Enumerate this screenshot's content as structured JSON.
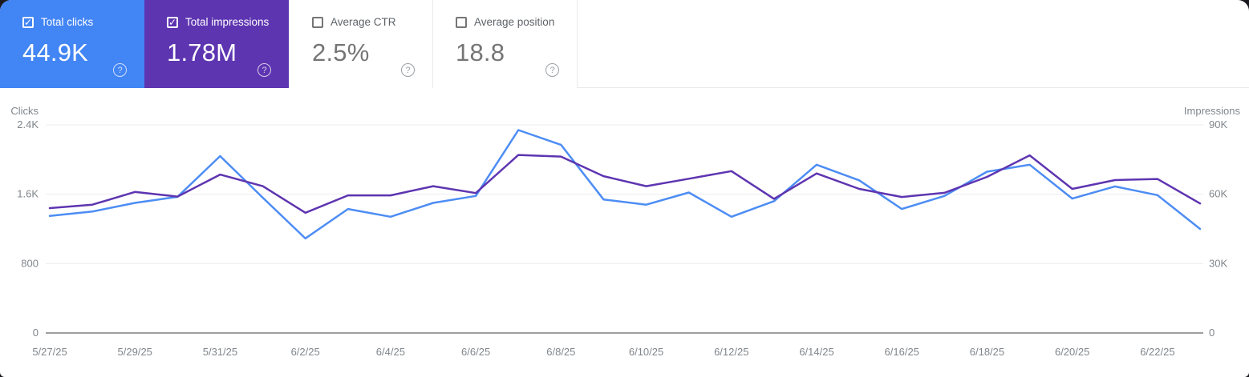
{
  "cards": [
    {
      "label": "Total clicks",
      "value": "44.9K",
      "selected": true,
      "color": "#4285f4",
      "help": "?"
    },
    {
      "label": "Total impressions",
      "value": "1.78M",
      "selected": true,
      "color": "#5e35b1",
      "help": "?"
    },
    {
      "label": "Average CTR",
      "value": "2.5%",
      "selected": false,
      "color": "",
      "help": "?"
    },
    {
      "label": "Average position",
      "value": "18.8",
      "selected": false,
      "color": "",
      "help": "?"
    }
  ],
  "chart_data": {
    "type": "line",
    "x": [
      "5/27/25",
      "5/28/25",
      "5/29/25",
      "5/30/25",
      "5/31/25",
      "6/1/25",
      "6/2/25",
      "6/3/25",
      "6/4/25",
      "6/5/25",
      "6/6/25",
      "6/7/25",
      "6/8/25",
      "6/9/25",
      "6/10/25",
      "6/11/25",
      "6/12/25",
      "6/13/25",
      "6/14/25",
      "6/15/25",
      "6/16/25",
      "6/17/25",
      "6/18/25",
      "6/19/25",
      "6/20/25",
      "6/21/25",
      "6/22/25",
      "6/23/25"
    ],
    "x_tick_every": 2,
    "series": [
      {
        "name": "Clicks",
        "axis": "left",
        "color": "#4d8df4",
        "values": [
          1350,
          1400,
          1500,
          1570,
          2040,
          1560,
          1090,
          1430,
          1340,
          1500,
          1580,
          2340,
          2170,
          1540,
          1480,
          1620,
          1340,
          1520,
          1940,
          1760,
          1430,
          1580,
          1860,
          1940,
          1550,
          1690,
          1590,
          1200
        ]
      },
      {
        "name": "Impressions",
        "axis": "right",
        "color": "#5e35b1",
        "values": [
          54000,
          55500,
          61000,
          59000,
          68500,
          63500,
          52000,
          59500,
          59500,
          63500,
          60500,
          77000,
          76300,
          67800,
          63500,
          66700,
          70000,
          58000,
          69000,
          62300,
          58800,
          60600,
          67500,
          76800,
          62300,
          66100,
          66600,
          56000
        ]
      }
    ],
    "left_axis": {
      "title": "Clicks",
      "max": 2400,
      "ticks": [
        0,
        800,
        1600,
        2400
      ],
      "tick_labels": [
        "0",
        "800",
        "1.6K",
        "2.4K"
      ]
    },
    "right_axis": {
      "title": "Impressions",
      "max": 90000,
      "ticks": [
        0,
        30000,
        60000,
        90000
      ],
      "tick_labels": [
        "0",
        "30K",
        "60K",
        "90K"
      ]
    },
    "grid": "horizontal",
    "legend_position": "none"
  }
}
